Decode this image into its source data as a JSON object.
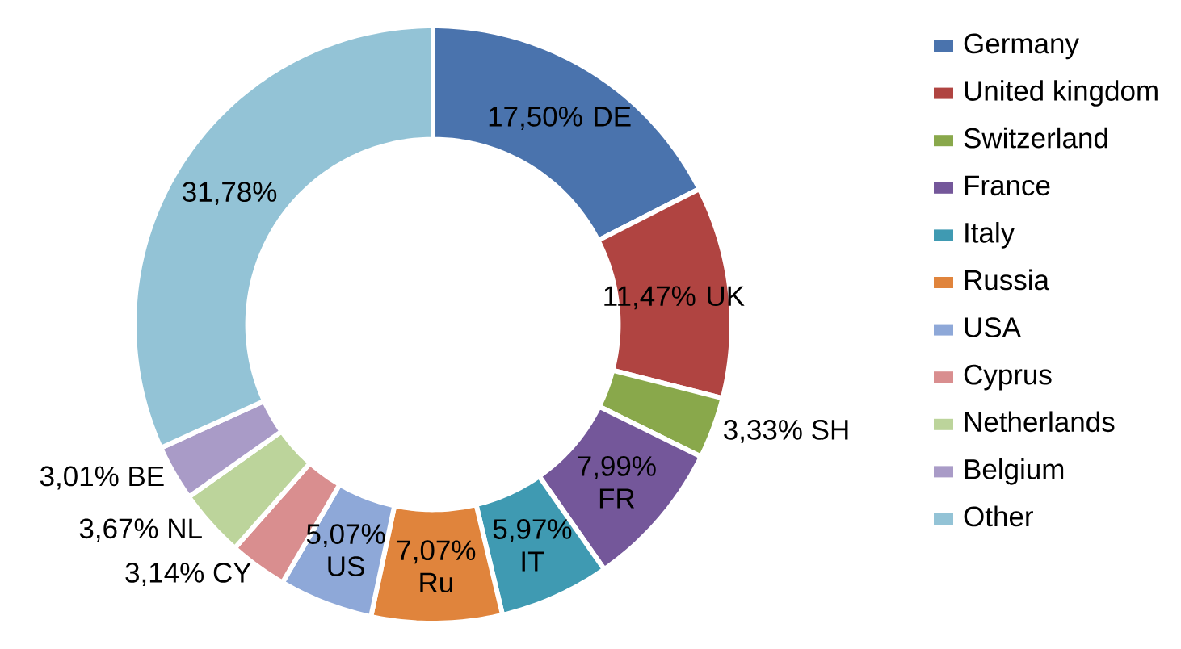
{
  "chart_data": {
    "type": "donut",
    "categories": [
      "Germany",
      "United kingdom",
      "Switzerland",
      "France",
      "Italy",
      "Russia",
      "USA",
      "Cyprus",
      "Netherlands",
      "Belgium",
      "Other"
    ],
    "values": [
      17.5,
      11.47,
      3.33,
      7.99,
      5.97,
      7.07,
      5.07,
      3.14,
      3.67,
      3.01,
      31.78
    ],
    "colors": [
      "#4a73ad",
      "#b04441",
      "#89a84b",
      "#74579a",
      "#3f9ab2",
      "#e0843c",
      "#8ea8d8",
      "#d98e8f",
      "#bcd49b",
      "#a99bc7",
      "#93c3d6"
    ],
    "value_labels": [
      "17,50% DE",
      "11,47% UK",
      "3,33% SH",
      "7,99% FR",
      "5,97% IT",
      "7,07% Ru",
      "5,07% US",
      "3,14% CY",
      "3,67% NL",
      "3,01% BE",
      "31,78%"
    ],
    "legend": "right"
  }
}
